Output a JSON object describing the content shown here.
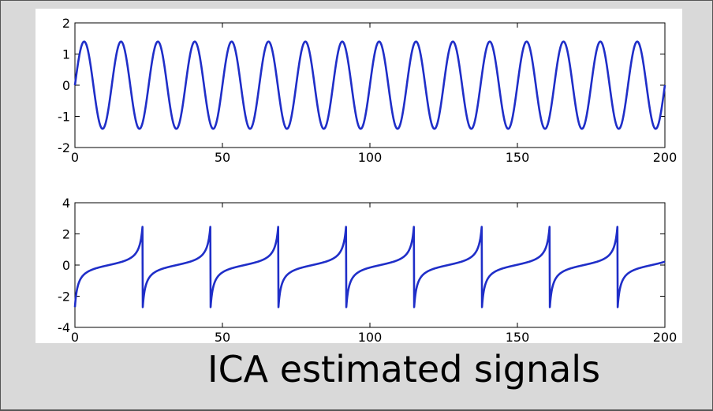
{
  "caption": "ICA estimated signals",
  "colors": {
    "line": "#1f2ec8",
    "background": "#d9d9d9",
    "plot_bg": "#ffffff"
  },
  "chart_data": [
    {
      "type": "line",
      "title": "",
      "xlabel": "",
      "ylabel": "",
      "xlim": [
        0,
        200
      ],
      "ylim": [
        -2,
        2
      ],
      "xticks": [
        0,
        50,
        100,
        150,
        200
      ],
      "yticks": [
        -2,
        -1,
        0,
        1,
        2
      ],
      "grid": false,
      "series": [
        {
          "shape": "sinusoid",
          "amplitude": 1.4,
          "period": 12.5,
          "x_start": 0,
          "x_end": 200,
          "first_value": 0
        }
      ]
    },
    {
      "type": "line",
      "title": "",
      "xlabel": "",
      "ylabel": "",
      "xlim": [
        0,
        200
      ],
      "ylim": [
        -4,
        4
      ],
      "xticks": [
        0,
        50,
        100,
        150,
        200
      ],
      "yticks": [
        -4,
        -2,
        0,
        2,
        4
      ],
      "grid": false,
      "series": [
        {
          "shape": "sawtooth-like",
          "peak": 2.7,
          "trough": -2.7,
          "jump_x": [
            23,
            46,
            69,
            92,
            115,
            138,
            161,
            184
          ],
          "x_start": 0,
          "x_end": 200
        }
      ]
    }
  ]
}
